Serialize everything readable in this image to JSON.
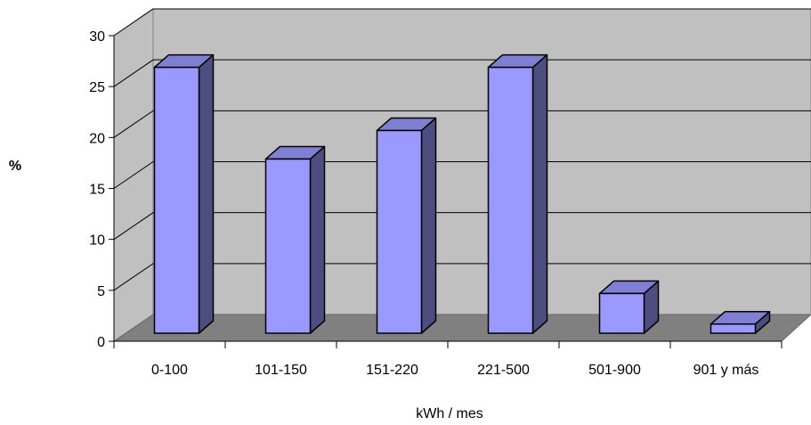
{
  "chart_data": {
    "type": "bar",
    "title": "",
    "xlabel": "kWh / mes",
    "ylabel": "%",
    "categories": [
      "0-100",
      "101-150",
      "151-220",
      "221-500",
      "501-900",
      "901 y más"
    ],
    "values": [
      27.5,
      18.5,
      21.3,
      27.5,
      5.3,
      2.3
    ],
    "ylim": [
      0,
      30
    ],
    "yticks": [
      0,
      5,
      10,
      15,
      20,
      25,
      30
    ],
    "grid": true,
    "style": "3d-column",
    "colors": {
      "bar_front": "#9999ff",
      "bar_side": "#4d4d80",
      "bar_top": "#7f7fd4",
      "back_wall": "#c0c0c0",
      "floor": "#808080"
    }
  }
}
